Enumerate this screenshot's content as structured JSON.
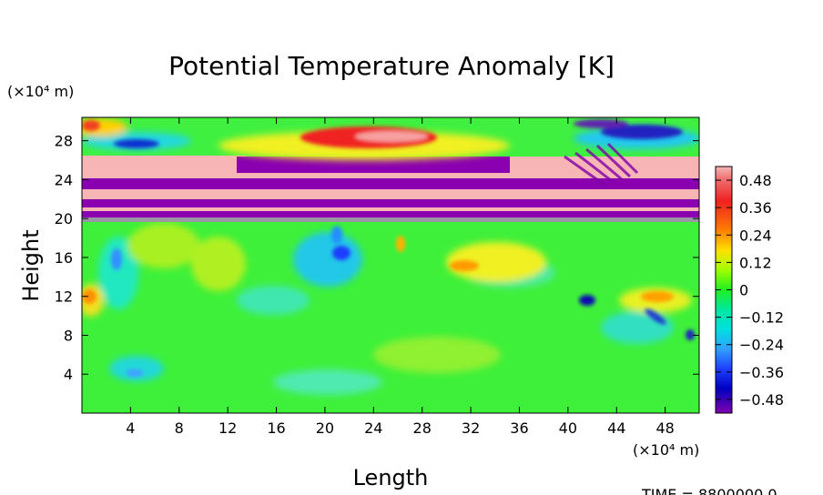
{
  "chart_data": {
    "type": "heatmap",
    "title": "Potential Temperature Anomaly [K]",
    "xlabel": "Length",
    "ylabel": "Height",
    "x_unit_label": "(×10⁴ m)",
    "y_unit_label": "(×10⁴ m)",
    "xlim": [
      0,
      50.8
    ],
    "ylim": [
      0,
      30.4
    ],
    "x_ticks": [
      4,
      8,
      12,
      16,
      20,
      24,
      28,
      32,
      36,
      40,
      44,
      48
    ],
    "y_ticks": [
      4,
      8,
      12,
      16,
      20,
      24,
      28
    ],
    "colorbar": {
      "range": [
        -0.54,
        0.54
      ],
      "ticks": [
        0.48,
        0.36,
        0.24,
        0.12,
        0,
        -0.12,
        -0.24,
        -0.36,
        -0.48
      ],
      "tick_labels": [
        "0.48",
        "0.36",
        "0.24",
        "0.12",
        "0",
        "−0.12",
        "−0.24",
        "−0.36",
        "−0.48"
      ],
      "colors": {
        "max": "#f7b5b5",
        "pos_high": "#f02020",
        "pos_mid": "#ffa000",
        "pos_low": "#ffff00",
        "zero": "#20f020",
        "neg_low": "#00e0e0",
        "neg_mid": "#1e60ff",
        "neg_high": "#0000c0",
        "min": "#8000b0"
      }
    },
    "annotation": "TIME = 8800000.0"
  }
}
